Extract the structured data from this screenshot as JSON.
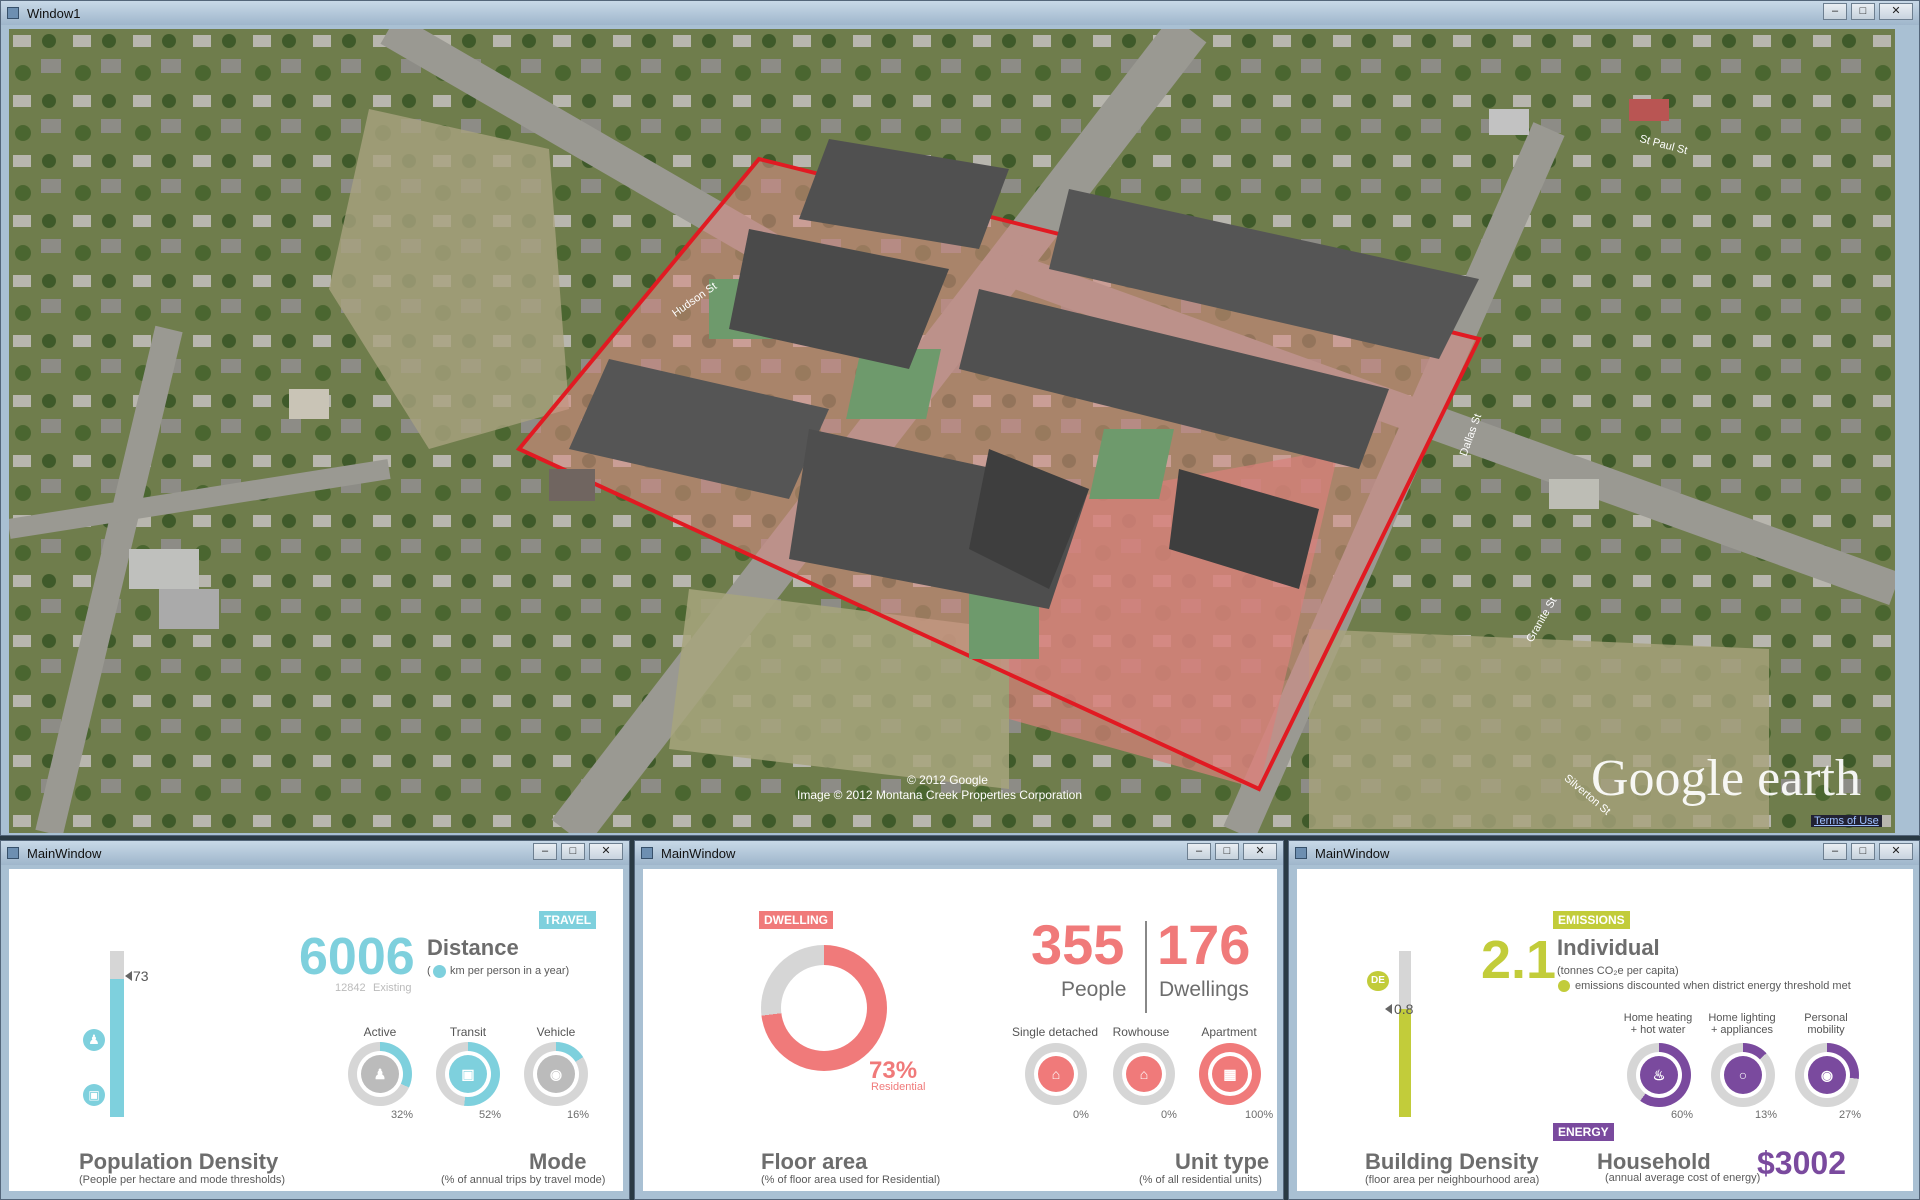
{
  "main_window": {
    "title": "Window1"
  },
  "map": {
    "copyright": "© 2012 Google",
    "image_credit": "Image © 2012 Montana Creek Properties Corporation",
    "brand": "Google earth",
    "terms": "Terms of Use",
    "streets": [
      "Dallas St",
      "Granite St",
      "St Paul St",
      "Silverton St",
      "Hudson St"
    ]
  },
  "panels": {
    "travel": {
      "title": "MainWindow",
      "tag": "TRAVEL",
      "slider_value": "73",
      "distance_value": "6006",
      "distance_label": "Distance",
      "distance_sub": "km per person in a year)",
      "distance_paren": "(",
      "existing_value": "12842",
      "existing_label": "Existing",
      "modes": [
        {
          "label": "Active",
          "pct": "32%",
          "fraction": 0.32
        },
        {
          "label": "Transit",
          "pct": "52%",
          "fraction": 0.52
        },
        {
          "label": "Vehicle",
          "pct": "16%",
          "fraction": 0.16
        }
      ],
      "pop_title": "Population Density",
      "pop_sub": "(People per hectare and mode thresholds)",
      "mode_title": "Mode",
      "mode_sub": "(% of  annual trips by travel mode)",
      "color": "#7ed0dd"
    },
    "dwelling": {
      "title": "MainWindow",
      "tag": "DWELLING",
      "residential_pct": "73%",
      "residential_fraction": 0.73,
      "residential_label": "Residential",
      "people_value": "355",
      "people_label": "People",
      "dwellings_value": "176",
      "dwellings_label": "Dwellings",
      "units": [
        {
          "label": "Single detached",
          "pct": "0%",
          "fraction": 0
        },
        {
          "label": "Rowhouse",
          "pct": "0%",
          "fraction": 0
        },
        {
          "label": "Apartment",
          "pct": "100%",
          "fraction": 1
        }
      ],
      "floor_title": "Floor area",
      "floor_sub": "(% of floor area used for Residential)",
      "unit_title": "Unit type",
      "unit_sub": "(% of  all  residential units)",
      "color": "#f07a7a"
    },
    "emissions": {
      "title": "MainWindow",
      "tag": "EMISSIONS",
      "de_label": "DE",
      "slider_value": "0.8",
      "individual_value": "2.1",
      "individual_label": "Individual",
      "individual_sub": "(tonnes CO₂e per capita)",
      "individual_note": "emissions discounted when district energy threshold met",
      "categories": [
        {
          "label": "Home heating\n+ hot water",
          "pct": "60%",
          "fraction": 0.6
        },
        {
          "label": "Home lighting\n+ appliances",
          "pct": "13%",
          "fraction": 0.13
        },
        {
          "label": "Personal\nmobility",
          "pct": "27%",
          "fraction": 0.27
        }
      ],
      "energy_tag": "ENERGY",
      "density_title": "Building Density",
      "density_sub": "(floor area per neighbourhood area)",
      "household_label": "Household",
      "household_value": "$3002",
      "household_sub": "(annual average cost of energy)",
      "color_green": "#c2cc3a",
      "color_purple": "#7a4a9e"
    }
  }
}
